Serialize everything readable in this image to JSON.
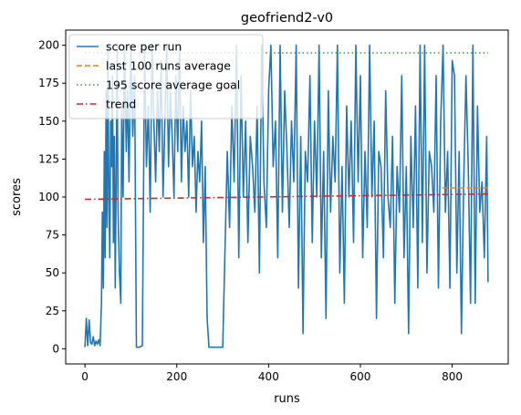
{
  "chart_data": {
    "type": "line",
    "title": "geofriend2-v0",
    "xlabel": "runs",
    "ylabel": "scores",
    "xlim": [
      -42,
      922
    ],
    "ylim": [
      -10,
      210
    ],
    "xticks": [
      0,
      200,
      400,
      600,
      800
    ],
    "yticks": [
      0,
      25,
      50,
      75,
      100,
      125,
      150,
      175,
      200
    ],
    "grid": false,
    "legend_position": "top-left",
    "series": [
      {
        "name": "score per run",
        "style": "solid",
        "color": "#1f77b4",
        "x": [
          0,
          3,
          6,
          9,
          12,
          15,
          18,
          21,
          24,
          27,
          30,
          33,
          36,
          38,
          40,
          42,
          44,
          46,
          48,
          50,
          52,
          54,
          56,
          58,
          60,
          62,
          64,
          66,
          68,
          70,
          72,
          75,
          78,
          80,
          83,
          86,
          90,
          93,
          96,
          100,
          104,
          108,
          112,
          118,
          125,
          130,
          134,
          138,
          142,
          146,
          150,
          154,
          158,
          162,
          166,
          170,
          174,
          178,
          182,
          186,
          190,
          194,
          198,
          202,
          206,
          210,
          214,
          218,
          222,
          226,
          230,
          234,
          238,
          242,
          246,
          250,
          254,
          258,
          262,
          266,
          270,
          300,
          310,
          315,
          320,
          325,
          330,
          335,
          340,
          345,
          350,
          355,
          360,
          365,
          370,
          375,
          380,
          385,
          390,
          395,
          400,
          405,
          410,
          415,
          420,
          425,
          430,
          435,
          440,
          445,
          450,
          455,
          460,
          465,
          470,
          475,
          480,
          485,
          490,
          495,
          500,
          505,
          510,
          515,
          520,
          525,
          530,
          535,
          540,
          545,
          550,
          555,
          560,
          565,
          570,
          575,
          580,
          585,
          590,
          595,
          600,
          605,
          610,
          615,
          620,
          625,
          630,
          635,
          640,
          645,
          650,
          655,
          660,
          665,
          670,
          675,
          680,
          685,
          690,
          695,
          700,
          705,
          710,
          715,
          720,
          725,
          730,
          735,
          740,
          745,
          750,
          755,
          760,
          765,
          770,
          775,
          780,
          785,
          790,
          795,
          800,
          805,
          810,
          815,
          820,
          825,
          830,
          835,
          840,
          845,
          850,
          855,
          860,
          865,
          870,
          875,
          878
        ],
        "y": [
          1,
          20,
          2,
          19,
          4,
          3,
          8,
          2,
          5,
          3,
          6,
          2,
          30,
          90,
          40,
          130,
          60,
          170,
          80,
          200,
          100,
          60,
          150,
          120,
          180,
          70,
          140,
          40,
          110,
          200,
          90,
          50,
          30,
          160,
          100,
          200,
          130,
          170,
          110,
          200,
          140,
          180,
          1,
          1,
          2,
          200,
          120,
          160,
          90,
          200,
          150,
          110,
          170,
          130,
          190,
          100,
          150,
          200,
          120,
          170,
          140,
          100,
          180,
          130,
          200,
          110,
          160,
          130,
          150,
          100,
          170,
          120,
          140,
          90,
          130,
          110,
          150,
          70,
          120,
          20,
          1,
          1,
          130,
          80,
          160,
          110,
          200,
          60,
          180,
          100,
          150,
          70,
          140,
          120,
          90,
          160,
          50,
          200,
          110,
          80,
          170,
          200,
          120,
          150,
          60,
          200,
          90,
          170,
          130,
          80,
          150,
          110,
          200,
          40,
          140,
          10,
          130,
          110,
          180,
          70,
          150,
          100,
          200,
          60,
          130,
          20,
          170,
          90,
          140,
          110,
          200,
          50,
          120,
          30,
          160,
          100,
          150,
          70,
          200,
          110,
          180,
          60,
          130,
          80,
          200,
          100,
          150,
          20,
          130,
          120,
          60,
          170,
          100,
          80,
          140,
          30,
          120,
          90,
          180,
          60,
          120,
          10,
          140,
          80,
          160,
          40,
          200,
          70,
          200,
          50,
          130,
          120,
          90,
          180,
          40,
          150,
          200,
          90,
          130,
          40,
          190,
          180,
          50,
          130,
          10,
          110,
          180,
          120,
          30,
          200,
          30,
          160,
          90,
          110,
          60,
          140,
          44
        ]
      },
      {
        "name": "last 100 runs average",
        "style": "dashed",
        "color": "#ff7f0e",
        "x": [
          778,
          878
        ],
        "y": [
          106,
          106
        ]
      },
      {
        "name": "195 score average goal",
        "style": "dotted",
        "color": "#2ca02c",
        "x": [
          0,
          878
        ],
        "y": [
          195,
          195
        ]
      },
      {
        "name": "trend",
        "style": "dashdot",
        "color": "#d62728",
        "x": [
          0,
          878
        ],
        "y": [
          98.5,
          102
        ]
      }
    ]
  }
}
